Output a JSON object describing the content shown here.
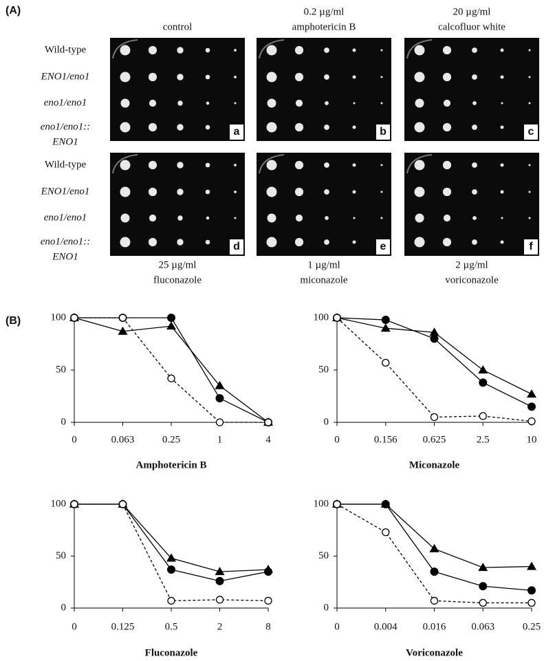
{
  "panel_a": {
    "label": "(A)",
    "top_headers": [
      [
        "control"
      ],
      [
        "0.2 µg/ml",
        "amphotericin B"
      ],
      [
        "20 µg/ml",
        "calcofluor white"
      ]
    ],
    "bottom_headers": [
      [
        "25 µg/ml",
        "fluconazole"
      ],
      [
        "1 µg/ml",
        "miconazole"
      ],
      [
        "2 µg/ml",
        "voriconazole"
      ]
    ],
    "row_labels": [
      [
        "Wild-type"
      ],
      [
        "ENO1/eno1"
      ],
      [
        "eno1/eno1"
      ],
      [
        "eno1/eno1::",
        "ENO1"
      ]
    ],
    "plate_letters": [
      "a",
      "b",
      "c",
      "d",
      "e",
      "f"
    ]
  },
  "panel_b": {
    "label": "(B)"
  },
  "chart_data": [
    {
      "type": "line",
      "x_label": "Amphotericin B",
      "categories": [
        "0",
        "0.063",
        "0.25",
        "1",
        "4"
      ],
      "ylim": [
        0,
        100
      ],
      "yticks": [
        0,
        50,
        100
      ],
      "series": [
        {
          "marker": "circle",
          "color": "#000000",
          "dashed": false,
          "values": [
            100,
            100,
            100,
            23,
            0
          ]
        },
        {
          "marker": "triangle",
          "color": "#000000",
          "dashed": false,
          "values": [
            100,
            87,
            92,
            35,
            0
          ]
        },
        {
          "marker": "open-circle",
          "color": "#000000",
          "dashed": true,
          "values": [
            100,
            100,
            42,
            0,
            0
          ]
        }
      ]
    },
    {
      "type": "line",
      "x_label": "Miconazole",
      "categories": [
        "0",
        "0.156",
        "0.625",
        "2.5",
        "10"
      ],
      "ylim": [
        0,
        100
      ],
      "yticks": [
        0,
        50,
        100
      ],
      "series": [
        {
          "marker": "circle",
          "color": "#000000",
          "dashed": false,
          "values": [
            100,
            98,
            80,
            38,
            15
          ]
        },
        {
          "marker": "triangle",
          "color": "#000000",
          "dashed": false,
          "values": [
            100,
            90,
            86,
            50,
            27
          ]
        },
        {
          "marker": "open-circle",
          "color": "#000000",
          "dashed": true,
          "values": [
            100,
            57,
            5,
            6,
            1
          ]
        }
      ]
    },
    {
      "type": "line",
      "x_label": "Fluconazole",
      "categories": [
        "0",
        "0.125",
        "0.5",
        "2",
        "8"
      ],
      "ylim": [
        0,
        100
      ],
      "yticks": [
        0,
        50,
        100
      ],
      "series": [
        {
          "marker": "circle",
          "color": "#000000",
          "dashed": false,
          "values": [
            100,
            100,
            37,
            26,
            35
          ]
        },
        {
          "marker": "triangle",
          "color": "#000000",
          "dashed": false,
          "values": [
            100,
            100,
            48,
            35,
            37
          ]
        },
        {
          "marker": "open-circle",
          "color": "#000000",
          "dashed": true,
          "values": [
            100,
            100,
            7,
            8,
            7
          ]
        }
      ]
    },
    {
      "type": "line",
      "x_label": "Voriconazole",
      "categories": [
        "0",
        "0.004",
        "0.016",
        "0.063",
        "0.25"
      ],
      "ylim": [
        0,
        100
      ],
      "yticks": [
        0,
        50,
        100
      ],
      "series": [
        {
          "marker": "circle",
          "color": "#000000",
          "dashed": false,
          "values": [
            100,
            100,
            35,
            21,
            17
          ]
        },
        {
          "marker": "triangle",
          "color": "#000000",
          "dashed": false,
          "values": [
            100,
            100,
            57,
            39,
            40
          ]
        },
        {
          "marker": "open-circle",
          "color": "#000000",
          "dashed": true,
          "values": [
            100,
            73,
            7,
            5,
            5
          ]
        }
      ]
    }
  ]
}
